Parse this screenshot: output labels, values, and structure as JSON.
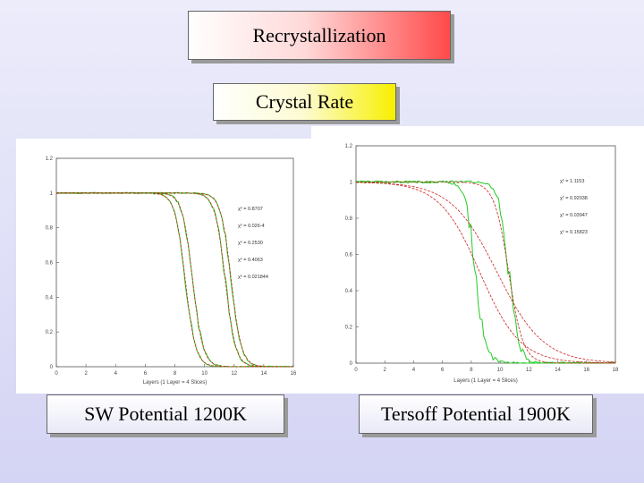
{
  "header": {
    "title": "Recrystallization",
    "subtitle": "Crystal Rate"
  },
  "chart_data": [
    {
      "type": "line",
      "caption": "SW Potential  1200K",
      "xlabel": "Layers (1 Layer = 4 Slices)",
      "ylabel": "",
      "xlim": [
        0,
        16
      ],
      "ylim": [
        0,
        1.2
      ],
      "xticks": [
        "0",
        "2",
        "4",
        "6",
        "8",
        "10",
        "12",
        "14",
        "16"
      ],
      "yticks": [
        "0",
        "0.2",
        "0.4",
        "0.6",
        "0.8",
        "1",
        "1.2"
      ],
      "legend": [
        "χ² = 0.8707",
        "χ² = 0.026-4",
        "χ² = 0.2530",
        "χ² = 0.4063",
        "χ² = 0.021844"
      ],
      "series": [
        {
          "name": "raw 1",
          "kind": "raw",
          "midpoint": 8.7,
          "width": 0.35
        },
        {
          "name": "raw 2",
          "kind": "raw",
          "midpoint": 9.2,
          "width": 0.35
        },
        {
          "name": "raw 3",
          "kind": "raw",
          "midpoint": 11.4,
          "width": 0.35
        },
        {
          "name": "raw 4",
          "kind": "raw",
          "midpoint": 11.8,
          "width": 0.35
        },
        {
          "name": "fit 1",
          "kind": "fit",
          "midpoint": 8.7,
          "width": 0.35
        },
        {
          "name": "fit 2",
          "kind": "fit",
          "midpoint": 9.2,
          "width": 0.35
        },
        {
          "name": "fit 3",
          "kind": "fit",
          "midpoint": 11.4,
          "width": 0.35
        },
        {
          "name": "fit 4",
          "kind": "fit",
          "midpoint": 11.8,
          "width": 0.35
        }
      ],
      "colors": {
        "raw": "#22cc22",
        "fit": "#cc2222"
      }
    },
    {
      "type": "line",
      "caption": "Tersoff Potential 1900K",
      "xlabel": "Layers (1 Layer = 4 Slices)",
      "ylabel": "",
      "xlim": [
        0,
        18
      ],
      "ylim": [
        0,
        1.2
      ],
      "xticks": [
        "0",
        "2",
        "4",
        "6",
        "8",
        "10",
        "12",
        "14",
        "16",
        "18"
      ],
      "yticks": [
        "0",
        "0.2",
        "0.4",
        "0.6",
        "0.8",
        "1",
        "1.2"
      ],
      "legend": [
        "χ² = 1.1153",
        "χ² = 0.92038",
        "χ² = 0.03947",
        "χ² = 0.15823"
      ],
      "series": [
        {
          "name": "raw 1",
          "kind": "raw",
          "midpoint": 8.3,
          "width": 0.35
        },
        {
          "name": "raw 2",
          "kind": "raw",
          "midpoint": 10.6,
          "width": 0.35
        },
        {
          "name": "fit 1",
          "kind": "fit",
          "midpoint": 8.6,
          "width": 1.4
        },
        {
          "name": "fit 2",
          "kind": "fit",
          "midpoint": 9.8,
          "width": 1.6
        },
        {
          "name": "fit 3",
          "kind": "fit",
          "midpoint": 10.6,
          "width": 0.5
        }
      ],
      "colors": {
        "raw": "#22cc22",
        "fit": "#cc2222"
      }
    }
  ]
}
